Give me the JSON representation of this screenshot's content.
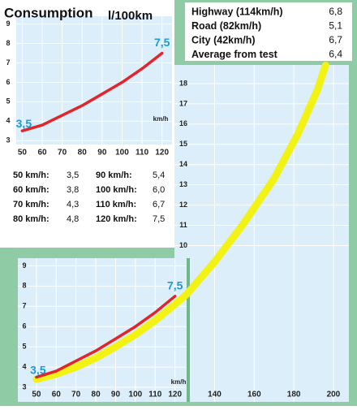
{
  "header": {
    "title": "Consumption",
    "unit": "l/100km"
  },
  "summary": [
    {
      "label": "Highway (114km/h)",
      "value": "6,8"
    },
    {
      "label": "Road (82km/h)",
      "value": "5,1"
    },
    {
      "label": "City (42km/h)",
      "value": "6,7"
    },
    {
      "label": "Average from test",
      "value": "6,4"
    }
  ],
  "table": [
    [
      "50 km/h:",
      "3,5",
      "90 km/h:",
      "5,4"
    ],
    [
      "60 km/h:",
      "3,8",
      "100 km/h:",
      "6,0"
    ],
    [
      "70 km/h:",
      "4,3",
      "110 km/h:",
      "6,7"
    ],
    [
      "80 km/h:",
      "4,8",
      "120 km/h:",
      "7,5"
    ]
  ],
  "chart_data": [
    {
      "type": "line",
      "xlabel": "km/h",
      "xlim": [
        47,
        125
      ],
      "ylim": [
        2.8,
        9.4
      ],
      "xticks": [
        50,
        60,
        70,
        80,
        90,
        100,
        110,
        120
      ],
      "yticks": [
        3,
        4,
        5,
        6,
        7,
        8,
        9
      ],
      "grid": true,
      "series": [
        {
          "color": "#e3242b",
          "x": [
            50,
            60,
            70,
            80,
            90,
            100,
            110,
            120
          ],
          "values": [
            3.5,
            3.8,
            4.3,
            4.8,
            5.4,
            6.0,
            6.7,
            7.5
          ],
          "value_labels": [
            "3,5",
            null,
            null,
            null,
            null,
            null,
            null,
            "7,5"
          ]
        }
      ]
    },
    {
      "type": "line",
      "xlabel": "km/h",
      "xlim": [
        48,
        207
      ],
      "ylim": [
        2.4,
        19
      ],
      "xticks": [
        50,
        60,
        70,
        80,
        90,
        100,
        110,
        120,
        140,
        160,
        180,
        200
      ],
      "yticks": [
        3,
        4,
        5,
        6,
        7,
        8,
        9,
        10,
        11,
        12,
        13,
        14,
        15,
        16,
        17,
        18
      ],
      "grid": true,
      "series": [
        {
          "color": "#f2f215",
          "x": [
            50,
            60,
            70,
            80,
            90,
            100,
            110,
            120,
            126,
            140,
            154,
            170,
            182,
            192,
            196
          ],
          "values": [
            3.4,
            3.65,
            4.0,
            4.45,
            5.0,
            5.6,
            6.3,
            7.1,
            7.6,
            9.2,
            11,
            13.3,
            15.5,
            17.7,
            18.9
          ]
        },
        {
          "color": "#e3242b",
          "x": [
            50,
            60,
            70,
            80,
            90,
            100,
            110,
            120
          ],
          "values": [
            3.5,
            3.8,
            4.3,
            4.8,
            5.4,
            6.0,
            6.7,
            7.5
          ],
          "value_labels": [
            "3,5",
            null,
            null,
            null,
            null,
            null,
            null,
            "7,5"
          ]
        }
      ]
    }
  ]
}
